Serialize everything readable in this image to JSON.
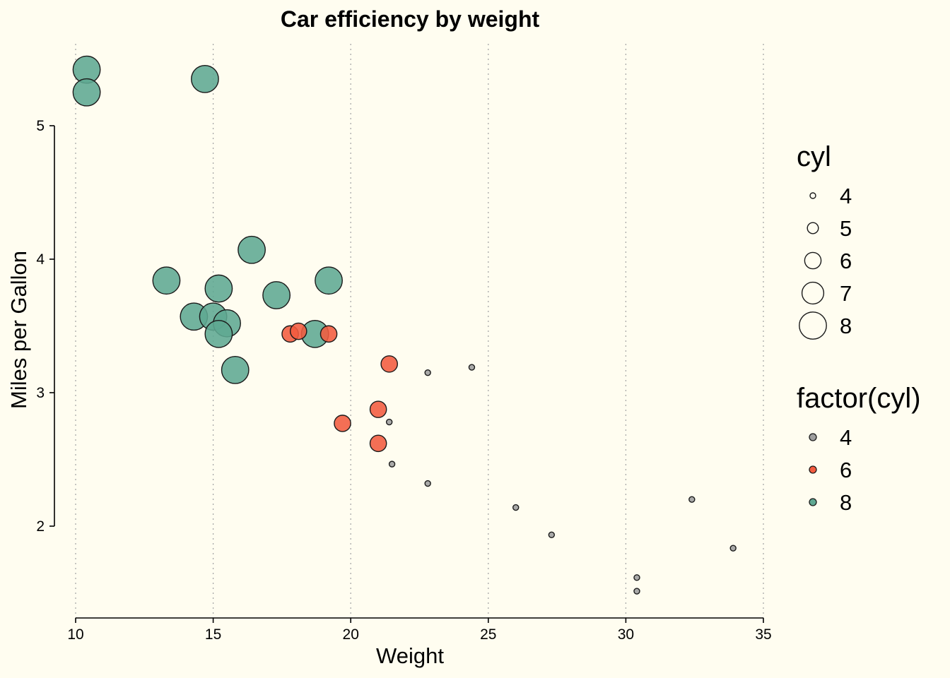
{
  "chart_data": {
    "type": "scatter",
    "title": "Car efficiency by weight",
    "xlabel": "Weight",
    "ylabel": "Miles per Gallon",
    "xlim": [
      10,
      35
    ],
    "ylim": [
      1.3,
      5.6
    ],
    "x_ticks": [
      10,
      15,
      20,
      25,
      30,
      35
    ],
    "y_ticks": [
      2,
      3,
      4,
      5
    ],
    "grid": "vertical dotted",
    "legend_position": "right",
    "size_legend": {
      "title": "cyl",
      "entries": [
        4,
        5,
        6,
        7,
        8
      ]
    },
    "color_legend": {
      "title": "factor(cyl)",
      "entries": [
        {
          "label": "4",
          "color": "#9E9E9E"
        },
        {
          "label": "6",
          "color": "#F35B3F"
        },
        {
          "label": "8",
          "color": "#5FA892"
        }
      ]
    },
    "points": [
      {
        "x": 10.4,
        "y": 5.42,
        "cyl": 8
      },
      {
        "x": 10.4,
        "y": 5.25,
        "cyl": 8
      },
      {
        "x": 14.7,
        "y": 5.35,
        "cyl": 8
      },
      {
        "x": 16.4,
        "y": 4.07,
        "cyl": 8
      },
      {
        "x": 13.3,
        "y": 3.84,
        "cyl": 8
      },
      {
        "x": 19.2,
        "y": 3.84,
        "cyl": 8
      },
      {
        "x": 15.2,
        "y": 3.78,
        "cyl": 8
      },
      {
        "x": 17.3,
        "y": 3.73,
        "cyl": 8
      },
      {
        "x": 14.3,
        "y": 3.57,
        "cyl": 8
      },
      {
        "x": 15.0,
        "y": 3.57,
        "cyl": 8
      },
      {
        "x": 15.5,
        "y": 3.52,
        "cyl": 8
      },
      {
        "x": 15.2,
        "y": 3.44,
        "cyl": 8
      },
      {
        "x": 18.7,
        "y": 3.44,
        "cyl": 8
      },
      {
        "x": 15.8,
        "y": 3.17,
        "cyl": 8
      },
      {
        "x": 17.8,
        "y": 3.44,
        "cyl": 6
      },
      {
        "x": 18.1,
        "y": 3.46,
        "cyl": 6
      },
      {
        "x": 19.2,
        "y": 3.44,
        "cyl": 6
      },
      {
        "x": 21.4,
        "y": 3.215,
        "cyl": 6
      },
      {
        "x": 21.0,
        "y": 2.875,
        "cyl": 6
      },
      {
        "x": 19.7,
        "y": 2.77,
        "cyl": 6
      },
      {
        "x": 21.0,
        "y": 2.62,
        "cyl": 6
      },
      {
        "x": 22.8,
        "y": 3.15,
        "cyl": 4
      },
      {
        "x": 24.4,
        "y": 3.19,
        "cyl": 4
      },
      {
        "x": 21.4,
        "y": 2.78,
        "cyl": 4
      },
      {
        "x": 21.5,
        "y": 2.465,
        "cyl": 4
      },
      {
        "x": 22.8,
        "y": 2.32,
        "cyl": 4
      },
      {
        "x": 26.0,
        "y": 2.14,
        "cyl": 4
      },
      {
        "x": 27.3,
        "y": 1.935,
        "cyl": 4
      },
      {
        "x": 32.4,
        "y": 2.2,
        "cyl": 4
      },
      {
        "x": 33.9,
        "y": 1.835,
        "cyl": 4
      },
      {
        "x": 30.4,
        "y": 1.615,
        "cyl": 4
      },
      {
        "x": 30.4,
        "y": 1.513,
        "cyl": 4
      }
    ]
  }
}
